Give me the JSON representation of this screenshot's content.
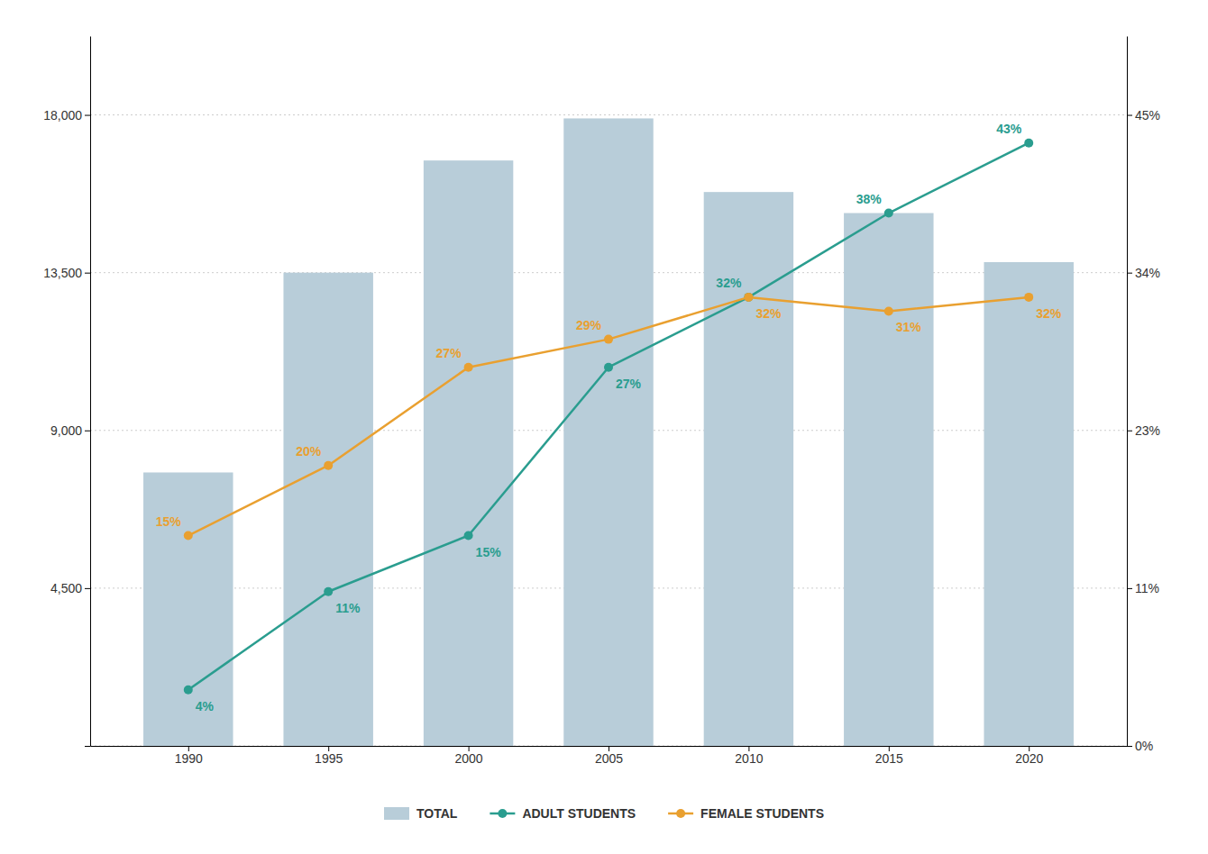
{
  "chart_data": {
    "type": "bar",
    "x": [
      1990,
      1995,
      2000,
      2005,
      2010,
      2015,
      2020
    ],
    "xlim": [
      1986.5,
      2023.5
    ],
    "xticks": [
      1990,
      1995,
      2000,
      2005,
      2010,
      2015,
      2020
    ],
    "ylim": [
      0,
      20250
    ],
    "yticks": [
      {
        "value": 0,
        "label": ""
      },
      {
        "value": 4500,
        "label": "4,500"
      },
      {
        "value": 9000,
        "label": "9,000"
      },
      {
        "value": 13500,
        "label": "13,500"
      },
      {
        "value": 18000,
        "label": "18,000"
      }
    ],
    "y2lim": [
      0,
      50.625
    ],
    "y2ticks": [
      {
        "value": 0,
        "label": "0%"
      },
      {
        "value": 11.25,
        "label": "11%"
      },
      {
        "value": 22.5,
        "label": "23%"
      },
      {
        "value": 33.75,
        "label": "34%"
      },
      {
        "value": 45,
        "label": "45%"
      }
    ],
    "grid": true,
    "legend": "bottom",
    "series": [
      {
        "name": "TOTAL",
        "type": "bar",
        "color": "#b8cdd9",
        "values": [
          7800,
          13500,
          16700,
          17900,
          15800,
          15200,
          13800
        ]
      },
      {
        "name": "ADULT STUDENTS",
        "type": "line",
        "axis": "y2",
        "color": "#2a9d8f",
        "marker": "circle",
        "data_labels": true,
        "values": [
          4,
          11,
          15,
          27,
          32,
          38,
          43
        ],
        "value_labels": [
          "4%",
          "11%",
          "15%",
          "27%",
          "32%",
          "38%",
          "43%"
        ]
      },
      {
        "name": "FEMALE STUDENTS",
        "type": "line",
        "axis": "y2",
        "color": "#e9a030",
        "marker": "circle",
        "data_labels": true,
        "values": [
          15,
          20,
          27,
          29,
          32,
          31,
          32
        ],
        "value_labels": [
          "15%",
          "20%",
          "27%",
          "29%",
          "32%",
          "31%",
          "32%"
        ]
      }
    ]
  }
}
